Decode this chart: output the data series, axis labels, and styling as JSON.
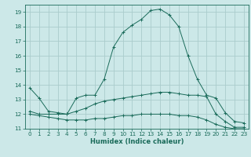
{
  "title": "",
  "xlabel": "Humidex (Indice chaleur)",
  "xlim": [
    -0.5,
    23.5
  ],
  "ylim": [
    11,
    19.5
  ],
  "yticks": [
    11,
    12,
    13,
    14,
    15,
    16,
    17,
    18,
    19
  ],
  "xticks": [
    0,
    1,
    2,
    3,
    4,
    5,
    6,
    7,
    8,
    9,
    10,
    11,
    12,
    13,
    14,
    15,
    16,
    17,
    18,
    19,
    20,
    21,
    22,
    23
  ],
  "bg_color": "#cce8e8",
  "grid_color": "#aacccc",
  "line_color": "#1a6b5a",
  "curve1_x": [
    0,
    1,
    2,
    3,
    4,
    5,
    6,
    7,
    8,
    9,
    10,
    11,
    12,
    13,
    14,
    15,
    16,
    17,
    18,
    19,
    20,
    21,
    22,
    23
  ],
  "curve1_y": [
    13.8,
    13.1,
    12.2,
    12.1,
    12.0,
    13.1,
    13.3,
    13.3,
    14.4,
    16.6,
    17.6,
    18.1,
    18.5,
    19.1,
    19.2,
    18.8,
    18.0,
    16.0,
    14.4,
    13.3,
    13.1,
    12.1,
    11.5,
    11.4
  ],
  "curve2_x": [
    0,
    1,
    2,
    3,
    4,
    5,
    6,
    7,
    8,
    9,
    10,
    11,
    12,
    13,
    14,
    15,
    16,
    17,
    18,
    19,
    20,
    21,
    22,
    23
  ],
  "curve2_y": [
    12.2,
    12.0,
    12.0,
    12.0,
    12.0,
    12.2,
    12.4,
    12.7,
    12.9,
    13.0,
    13.1,
    13.2,
    13.3,
    13.4,
    13.5,
    13.5,
    13.4,
    13.3,
    13.3,
    13.2,
    12.0,
    11.5,
    11.1,
    11.1
  ],
  "curve3_x": [
    0,
    1,
    2,
    3,
    4,
    5,
    6,
    7,
    8,
    9,
    10,
    11,
    12,
    13,
    14,
    15,
    16,
    17,
    18,
    19,
    20,
    21,
    22,
    23
  ],
  "curve3_y": [
    12.0,
    11.9,
    11.8,
    11.7,
    11.6,
    11.6,
    11.6,
    11.7,
    11.7,
    11.8,
    11.9,
    11.9,
    12.0,
    12.0,
    12.0,
    12.0,
    11.9,
    11.9,
    11.8,
    11.6,
    11.3,
    11.1,
    11.0,
    11.0
  ],
  "xlabel_fontsize": 6.0,
  "tick_labelsize": 5.2,
  "lw": 0.7,
  "ms": 2.8,
  "mew": 0.7
}
